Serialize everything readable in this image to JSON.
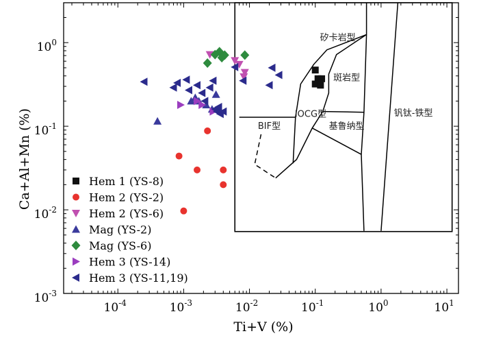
{
  "chart_data": {
    "type": "scatter",
    "title": "",
    "xlabel": "Ti+V (%)",
    "ylabel": "Ca+Al+Mn (%)",
    "xscale": "log",
    "yscale": "log",
    "xlim": [
      1.5e-05,
      15
    ],
    "ylim": [
      0.001,
      3
    ],
    "x_ticks": [
      {
        "value": 0.0001,
        "base": "10",
        "exp": "-4"
      },
      {
        "value": 0.001,
        "base": "10",
        "exp": "-3"
      },
      {
        "value": 0.01,
        "base": "10",
        "exp": "-2"
      },
      {
        "value": 0.1,
        "base": "10",
        "exp": "-1"
      },
      {
        "value": 1,
        "base": "10",
        "exp": "0"
      },
      {
        "value": 10,
        "base": "10",
        "exp": "1"
      }
    ],
    "y_ticks": [
      {
        "value": 0.001,
        "base": "10",
        "exp": "-3"
      },
      {
        "value": 0.01,
        "base": "10",
        "exp": "-2"
      },
      {
        "value": 0.1,
        "base": "10",
        "exp": "-1"
      },
      {
        "value": 1,
        "base": "10",
        "exp": "0"
      }
    ],
    "inset_bounds": {
      "x": [
        0.006,
        12
      ],
      "y": [
        0.0055,
        3
      ]
    },
    "regions": [
      {
        "label": "矽卡岩型",
        "x": 0.22,
        "y": 1.15
      },
      {
        "label": "斑岩型",
        "x": 0.3,
        "y": 0.38
      },
      {
        "label": "IOCG型",
        "x": 0.085,
        "y": 0.14
      },
      {
        "label": "基鲁纳型",
        "x": 0.3,
        "y": 0.1
      },
      {
        "label": "钒钛-铁型",
        "x": 3.1,
        "y": 0.143
      },
      {
        "label": "BIF型",
        "x": 0.02,
        "y": 0.1
      }
    ],
    "boundaries": [
      {
        "style": "solid",
        "points": [
          [
            0.007,
            0.128
          ],
          [
            0.05,
            0.128
          ]
        ]
      },
      {
        "style": "solid",
        "points": [
          [
            0.046,
            0.036
          ],
          [
            0.05,
            0.128
          ],
          [
            0.06,
            0.32
          ],
          [
            0.095,
            0.55
          ],
          [
            0.15,
            0.82
          ],
          [
            0.6,
            1.25
          ]
        ]
      },
      {
        "style": "solid",
        "points": [
          [
            0.025,
            0.024
          ],
          [
            0.052,
            0.04
          ],
          [
            0.09,
            0.095
          ],
          [
            0.13,
            0.15
          ],
          [
            0.16,
            0.25
          ],
          [
            0.16,
            0.42
          ],
          [
            0.21,
            0.72
          ],
          [
            0.6,
            1.25
          ]
        ]
      },
      {
        "style": "solid",
        "points": [
          [
            0.13,
            0.15
          ],
          [
            0.55,
            0.147
          ]
        ]
      },
      {
        "style": "solid",
        "points": [
          [
            0.09,
            0.095
          ],
          [
            0.5,
            0.046
          ]
        ]
      },
      {
        "style": "solid",
        "points": [
          [
            0.6,
            3
          ],
          [
            0.6,
            1.25
          ],
          [
            0.55,
            0.147
          ],
          [
            0.5,
            0.046
          ],
          [
            0.55,
            0.0056
          ]
        ]
      },
      {
        "style": "solid",
        "points": [
          [
            1.0,
            0.0056
          ],
          [
            1.8,
            3
          ]
        ]
      },
      {
        "style": "dashed",
        "points": [
          [
            0.015,
            0.08
          ],
          [
            0.012,
            0.035
          ],
          [
            0.025,
            0.024
          ]
        ]
      }
    ],
    "series": [
      {
        "name": "Hem 1 (YS-8)",
        "marker": "square",
        "color": "#111111",
        "points": [
          [
            0.1,
            0.47
          ],
          [
            0.11,
            0.37
          ],
          [
            0.125,
            0.37
          ],
          [
            0.1,
            0.32
          ],
          [
            0.12,
            0.31
          ]
        ]
      },
      {
        "name": "Hem 2 (YS-2)",
        "marker": "circle",
        "color": "#e8332e",
        "points": [
          [
            0.00085,
            0.044
          ],
          [
            0.0023,
            0.088
          ],
          [
            0.0016,
            0.03
          ],
          [
            0.004,
            0.03
          ],
          [
            0.004,
            0.02
          ],
          [
            0.001,
            0.0097
          ]
        ]
      },
      {
        "name": "Hem 2 (YS-6)",
        "marker": "triangle-down",
        "color": "#c050b0",
        "points": [
          [
            0.0025,
            0.72
          ],
          [
            0.006,
            0.61
          ],
          [
            0.007,
            0.55
          ],
          [
            0.0085,
            0.44
          ],
          [
            0.0082,
            0.39
          ]
        ]
      },
      {
        "name": "Mag (YS-2)",
        "marker": "triangle-up",
        "color": "#3a3a9c",
        "points": [
          [
            0.0004,
            0.115
          ],
          [
            0.0013,
            0.2
          ],
          [
            0.0015,
            0.22
          ],
          [
            0.0017,
            0.2
          ],
          [
            0.0022,
            0.18
          ],
          [
            0.0027,
            0.16
          ],
          [
            0.0031,
            0.24
          ],
          [
            0.0035,
            0.16
          ]
        ]
      },
      {
        "name": "Mag (YS-6)",
        "marker": "diamond",
        "color": "#2e8b3e",
        "points": [
          [
            0.0023,
            0.57
          ],
          [
            0.003,
            0.72
          ],
          [
            0.0035,
            0.78
          ],
          [
            0.0038,
            0.66
          ],
          [
            0.0042,
            0.71
          ],
          [
            0.0085,
            0.71
          ]
        ]
      },
      {
        "name": "Hem 3 (YS-14)",
        "marker": "triangle-right",
        "color": "#9b3dbf",
        "points": [
          [
            0.0009,
            0.18
          ],
          [
            0.0016,
            0.2
          ],
          [
            0.0019,
            0.18
          ],
          [
            0.0028,
            0.15
          ]
        ]
      },
      {
        "name": "Hem 3 (YS-11,19)",
        "marker": "triangle-left",
        "color": "#2b2b8c",
        "points": [
          [
            0.00025,
            0.34
          ],
          [
            0.0007,
            0.29
          ],
          [
            0.0008,
            0.33
          ],
          [
            0.0011,
            0.36
          ],
          [
            0.0012,
            0.27
          ],
          [
            0.0016,
            0.31
          ],
          [
            0.0019,
            0.25
          ],
          [
            0.0021,
            0.2
          ],
          [
            0.0025,
            0.29
          ],
          [
            0.0028,
            0.35
          ],
          [
            0.003,
            0.16
          ],
          [
            0.0032,
            0.15
          ],
          [
            0.0034,
            0.17
          ],
          [
            0.0036,
            0.14
          ],
          [
            0.004,
            0.15
          ],
          [
            0.006,
            0.51
          ],
          [
            0.008,
            0.35
          ],
          [
            0.02,
            0.31
          ],
          [
            0.022,
            0.5
          ],
          [
            0.028,
            0.41
          ]
        ]
      }
    ],
    "legend": {
      "position": "lower-left"
    }
  }
}
